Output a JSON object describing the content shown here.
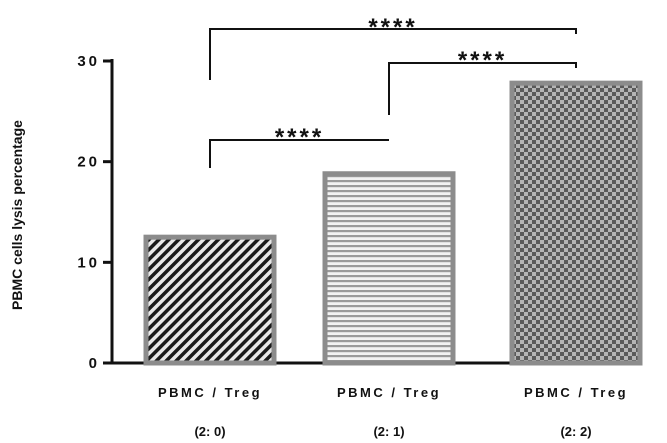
{
  "chart_data": {
    "type": "bar",
    "ylabel": "PBMC cells lysis percentage",
    "ylim": [
      0,
      30
    ],
    "yticks": [
      0,
      10,
      20,
      30
    ],
    "grid": false,
    "categories": [
      {
        "label": "PBMC / Treg",
        "sub": "(2: 0)"
      },
      {
        "label": "PBMC / Treg",
        "sub": "(2: 1)"
      },
      {
        "label": "PBMC / Treg",
        "sub": "(2: 2)"
      }
    ],
    "values": [
      12.5,
      18.8,
      27.8
    ],
    "patterns": [
      "diagonal-hatch",
      "horizontal-stripes",
      "checkerboard"
    ],
    "significance": [
      {
        "from": 0,
        "to": 1,
        "label": "****"
      },
      {
        "from": 1,
        "to": 2,
        "label": "****"
      },
      {
        "from": 0,
        "to": 2,
        "label": "****"
      }
    ]
  }
}
